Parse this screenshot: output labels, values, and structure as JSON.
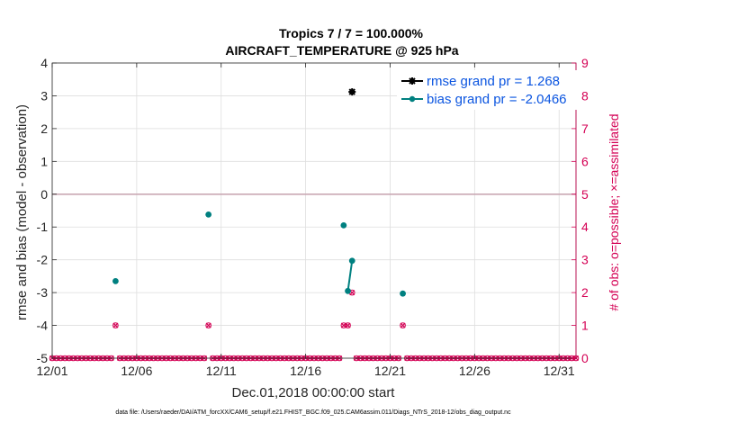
{
  "chart_data": {
    "type": "line",
    "title": "Tropics 7 / 7 = 100.000%",
    "subtitle": "AIRCRAFT_TEMPERATURE @ 925 hPa",
    "xlabel": "Dec.01,2018 00:00:00 start",
    "ylabel": "rmse and bias (model - observation)",
    "y2label": "# of obs: o=possible; ×=assimilated",
    "xlim": [
      0,
      31
    ],
    "ylim": [
      -5,
      4
    ],
    "y2lim": [
      0,
      9
    ],
    "x_ticks": [
      0,
      5,
      10,
      15,
      20,
      25,
      30
    ],
    "x_tick_labels": [
      "12/01",
      "12/06",
      "12/11",
      "12/16",
      "12/21",
      "12/26",
      "12/31"
    ],
    "y_ticks": [
      -5,
      -4,
      -3,
      -2,
      -1,
      0,
      1,
      2,
      3,
      4
    ],
    "y_tick_labels": [
      "-5",
      "-4",
      "-3",
      "-2",
      "-1",
      "0",
      "1",
      "2",
      "3",
      "4"
    ],
    "y2_ticks": [
      0,
      1,
      2,
      3,
      4,
      5,
      6,
      7,
      8,
      9
    ],
    "y2_tick_labels": [
      "0",
      "1",
      "2",
      "3",
      "4",
      "5",
      "6",
      "7",
      "8",
      "9"
    ],
    "grid": true,
    "legend_position": "top-right",
    "series": [
      {
        "name": "rmse grand pr = 1.268",
        "color": "#000000",
        "marker": "asterisk",
        "points": [
          [
            17.75,
            3.12
          ]
        ]
      },
      {
        "name": "bias grand pr = -2.0466",
        "color": "#008080",
        "marker": "circle",
        "points": [
          [
            3.75,
            -2.65
          ],
          [
            9.25,
            -0.62
          ],
          [
            17.25,
            -0.95
          ],
          [
            17.5,
            -2.95
          ],
          [
            17.75,
            -2.03
          ],
          [
            20.75,
            -3.03
          ]
        ],
        "segments": [
          [
            [
              17.5,
              -2.95
            ],
            [
              17.75,
              -2.03
            ]
          ]
        ]
      }
    ],
    "obs_counts": {
      "name": "# of obs (right axis)",
      "color": "#d40054",
      "interval_days": 0.25,
      "nonzero": [
        {
          "x": 3.75,
          "possible": 1,
          "assimilated": 1
        },
        {
          "x": 9.25,
          "possible": 1,
          "assimilated": 1
        },
        {
          "x": 17.25,
          "possible": 1,
          "assimilated": 1
        },
        {
          "x": 17.5,
          "possible": 1,
          "assimilated": 1
        },
        {
          "x": 17.75,
          "possible": 2,
          "assimilated": 2
        },
        {
          "x": 20.75,
          "possible": 1,
          "assimilated": 1
        }
      ],
      "zero_value": 0
    },
    "reference_line_y": 0
  },
  "footer": "data file: /Users/raeder/DAI/ATM_forcXX/CAM6_setup/f.e21.FHIST_BGC.f09_025.CAM6assim.011/Diags_NTrS_2018-12/obs_diag_output.nc"
}
